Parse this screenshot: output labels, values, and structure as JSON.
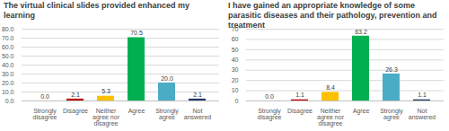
{
  "chart_data": [
    {
      "type": "bar",
      "title": "The virtual clinical slides provided enhanced my learning",
      "categories": [
        "Strongly disagree",
        "Disagree",
        "Neither agree nor disagree",
        "Agree",
        "Strongly agree",
        "Not answered"
      ],
      "values": [
        0.0,
        2.1,
        5.3,
        70.5,
        20.0,
        2.1
      ],
      "value_labels": [
        "0.0",
        "2.1",
        "5.3",
        "70.5",
        "20.0",
        "2.1"
      ],
      "colors": [
        "#c00000",
        "#c00000",
        "#ffc000",
        "#00b050",
        "#4bacc6",
        "#1f3864"
      ],
      "ylim": [
        0,
        80
      ],
      "yticks": [
        {
          "value": 0,
          "label": "0.0"
        },
        {
          "value": 10,
          "label": "10.0"
        },
        {
          "value": 20,
          "label": "20.0"
        },
        {
          "value": 30,
          "label": "30.0"
        },
        {
          "value": 40,
          "label": "40.0"
        },
        {
          "value": 50,
          "label": "50.0"
        },
        {
          "value": 60,
          "label": "60.0"
        },
        {
          "value": 70,
          "label": "70.0"
        },
        {
          "value": 80,
          "label": "80.0"
        }
      ],
      "grid": true,
      "data_labels": true
    },
    {
      "type": "bar",
      "title": "I have gained an appropriate knowledge of some parasitic diseases and their pathology, prevention and treatment",
      "categories": [
        "Strongly disagree",
        "Disagree",
        "Neither agree nor disagree",
        "Agree",
        "Strongly agree",
        "Not answered"
      ],
      "values": [
        0.0,
        1.1,
        8.4,
        63.2,
        26.3,
        1.1
      ],
      "value_labels": [
        "0.0",
        "1.1",
        "8.4",
        "63.2",
        "26.3",
        "1.1"
      ],
      "colors": [
        "#c00000",
        "#c00000",
        "#ffc000",
        "#00b050",
        "#4bacc6",
        "#1f3864"
      ],
      "ylim": [
        0,
        70
      ],
      "yticks": [
        0,
        10,
        20,
        30,
        40,
        50,
        60,
        70
      ],
      "grid": true,
      "data_labels": true
    }
  ]
}
